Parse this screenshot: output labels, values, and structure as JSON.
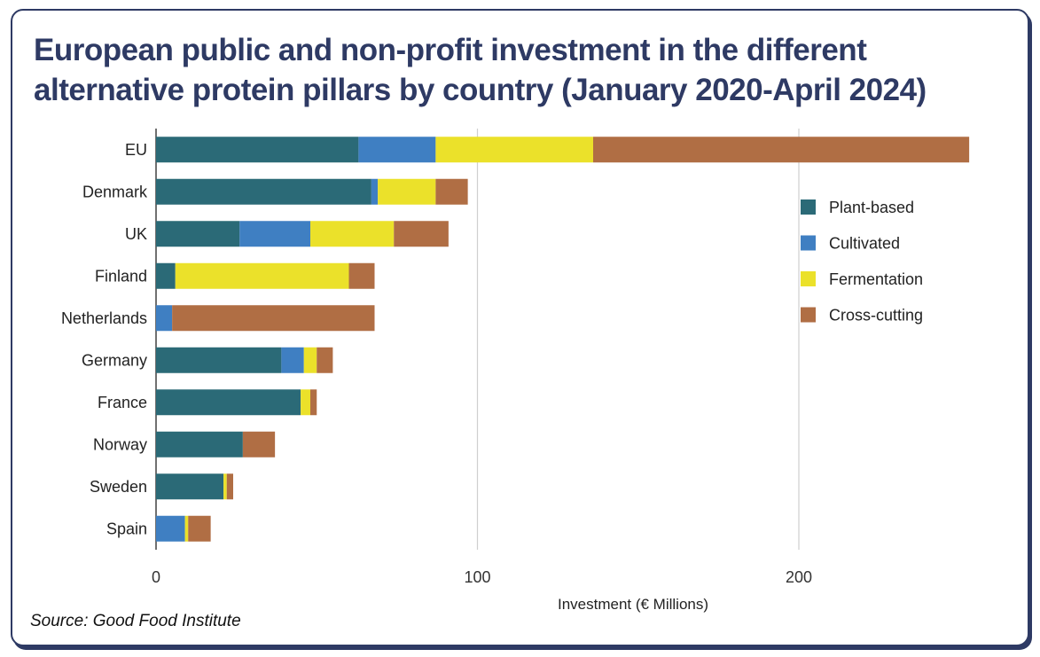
{
  "title": "European public and non-profit investment in the different alternative protein pillars by country (January 2020-April 2024)",
  "source": "Source: Good Food Institute",
  "chart_data": {
    "type": "bar",
    "orientation": "horizontal",
    "stacked": true,
    "title": "European public and non-profit investment in the different alternative protein pillars by country (January 2020-April 2024)",
    "xlabel": "Investment (€ Millions)",
    "ylabel": "",
    "xlim": [
      0,
      255
    ],
    "xticks": [
      0,
      100,
      200
    ],
    "grid": "vertical",
    "legend_position": "right",
    "categories": [
      "EU",
      "Denmark",
      "UK",
      "Finland",
      "Netherlands",
      "Germany",
      "France",
      "Norway",
      "Sweden",
      "Spain"
    ],
    "series": [
      {
        "name": "Plant-based",
        "color": "#2b6a77",
        "values": [
          63,
          67,
          26,
          6,
          0,
          39,
          45,
          27,
          21,
          0
        ]
      },
      {
        "name": "Cultivated",
        "color": "#3f7fc2",
        "values": [
          24,
          2,
          22,
          0,
          5,
          7,
          0,
          0,
          0,
          9
        ]
      },
      {
        "name": "Fermentation",
        "color": "#ebe12a",
        "values": [
          49,
          18,
          26,
          54,
          0,
          4,
          3,
          0,
          1,
          1
        ]
      },
      {
        "name": "Cross-cutting",
        "color": "#b06e44",
        "values": [
          117,
          10,
          17,
          8,
          63,
          5,
          2,
          10,
          2,
          7
        ]
      }
    ]
  }
}
